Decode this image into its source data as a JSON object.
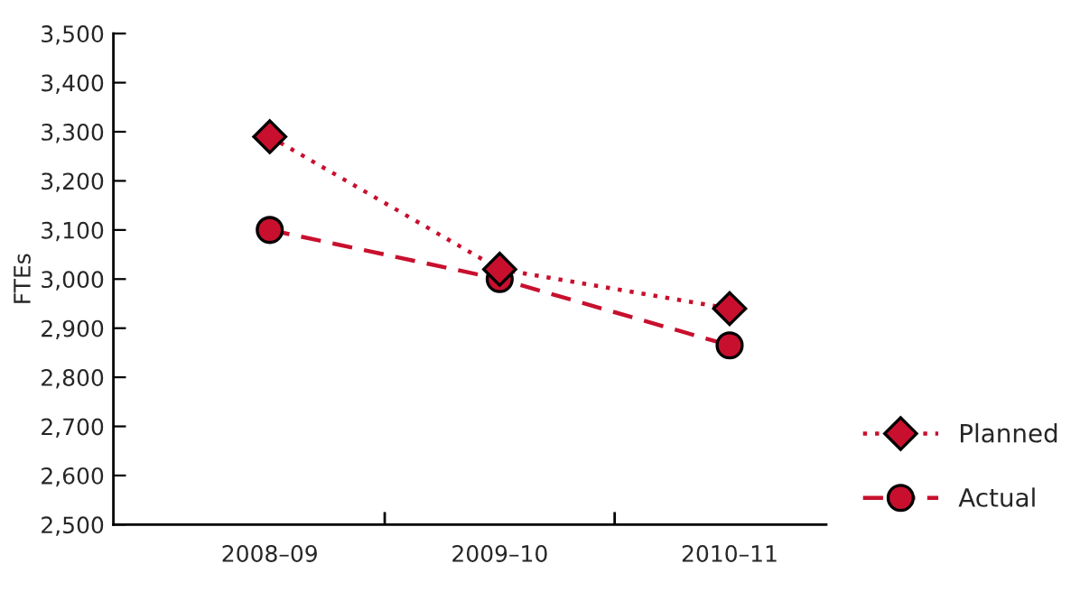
{
  "chart_data": {
    "type": "line",
    "ylabel": "FTEs",
    "categories": [
      "2008–09",
      "2009–10",
      "2010–11"
    ],
    "series": [
      {
        "name": "Planned",
        "color": "#c8102e",
        "values": [
          3290,
          3020,
          2940
        ],
        "marker": "diamond",
        "line_style": "dotted"
      },
      {
        "name": "Actual",
        "color": "#c8102e",
        "values": [
          3100,
          3000,
          2865
        ],
        "marker": "circle",
        "line_style": "dashed"
      }
    ],
    "ylim": [
      2500,
      3500
    ],
    "yticks": [
      {
        "value": 2500,
        "label": "2,500"
      },
      {
        "value": 2600,
        "label": "2,600"
      },
      {
        "value": 2700,
        "label": "2,700"
      },
      {
        "value": 2800,
        "label": "2,800"
      },
      {
        "value": 2900,
        "label": "2,900"
      },
      {
        "value": 3000,
        "label": "3,000"
      },
      {
        "value": 3100,
        "label": "3,100"
      },
      {
        "value": 3200,
        "label": "3,200"
      },
      {
        "value": 3300,
        "label": "3,300"
      },
      {
        "value": 3400,
        "label": "3,400"
      },
      {
        "value": 3500,
        "label": "3,500"
      }
    ],
    "grid": false,
    "legend": "bottom right"
  }
}
